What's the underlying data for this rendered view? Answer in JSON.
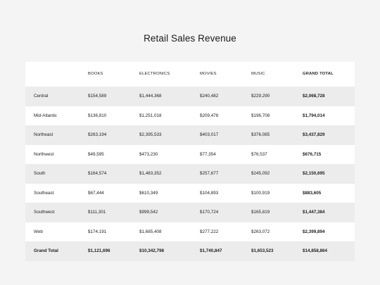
{
  "title": "Retail Sales Revenue",
  "columns": [
    "",
    "BOOKS",
    "ELECTRONICS",
    "MOVIES",
    "MUSIC",
    "GRAND TOTAL"
  ],
  "rows": [
    [
      "Central",
      "$154,589",
      "$1,444,368",
      "$240,482",
      "$229,290",
      "$2,068,728"
    ],
    [
      "Mid-Atlantic",
      "$136,810",
      "$1,251,018",
      "$209,478",
      "$196,708",
      "$1,794,014"
    ],
    [
      "Northeast",
      "$263,194",
      "$2,395,533",
      "$403,017",
      "$376,085",
      "$3,437,829"
    ],
    [
      "Northwest",
      "$49,595",
      "$473,230",
      "$77,354",
      "$76,537",
      "$676,715"
    ],
    [
      "South",
      "$164,574",
      "$1,483,352",
      "$257,677",
      "$245,092",
      "$2,150,695"
    ],
    [
      "Southeast",
      "$67,444",
      "$610,349",
      "$104,893",
      "$100,919",
      "$883,605"
    ],
    [
      "Southwest",
      "$111,301",
      "$999,542",
      "$170,724",
      "$165,819",
      "$1,447,384"
    ],
    [
      "Web",
      "$174,191",
      "$1,685,408",
      "$277,222",
      "$263,072",
      "$2,399,894"
    ]
  ],
  "totals": [
    "Grand Total",
    "$1,121,696",
    "$10,342,798",
    "$1,740,847",
    "$1,653,523",
    "$14,858,864"
  ]
}
